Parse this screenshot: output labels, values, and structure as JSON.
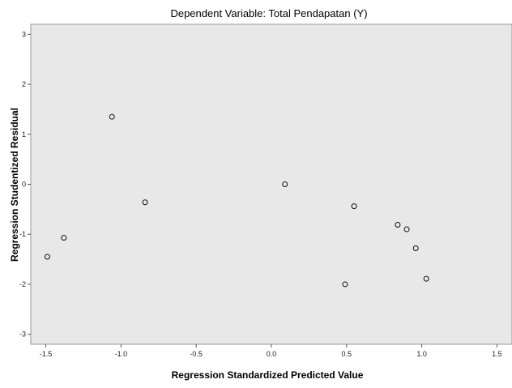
{
  "chart_data": {
    "type": "scatter",
    "title": "Dependent Variable: Total Pendapatan (Y)",
    "xlabel": "Regression Standardized Predicted Value",
    "ylabel": "Regression Studentized Residual",
    "xlim": [
      -1.6,
      1.6
    ],
    "ylim": [
      -3.2,
      3.2
    ],
    "x_ticks": [
      -1.5,
      -1.0,
      -0.5,
      0.0,
      0.5,
      1.0,
      1.5
    ],
    "x_tick_labels": [
      "-1.5",
      "-1.0",
      "-0.5",
      "0.0",
      "0.5",
      "1.0",
      "1.5"
    ],
    "y_ticks": [
      3,
      2,
      1,
      0,
      -1,
      -2,
      -3
    ],
    "y_tick_labels": [
      "3",
      "2",
      "1",
      "0",
      "-1",
      "-2",
      "-3"
    ],
    "grid": false,
    "plot_background": "#e8e8e8",
    "marker": "open-circle",
    "points": [
      {
        "x": -1.49,
        "y": -1.45
      },
      {
        "x": -1.38,
        "y": -1.07
      },
      {
        "x": -1.06,
        "y": 1.35
      },
      {
        "x": -0.84,
        "y": -0.36
      },
      {
        "x": 0.09,
        "y": 0.0
      },
      {
        "x": 0.49,
        "y": -2.0
      },
      {
        "x": 0.55,
        "y": -0.44
      },
      {
        "x": 0.84,
        "y": -0.81
      },
      {
        "x": 0.9,
        "y": -0.9
      },
      {
        "x": 0.96,
        "y": -1.28
      },
      {
        "x": 1.03,
        "y": -1.89
      }
    ]
  }
}
